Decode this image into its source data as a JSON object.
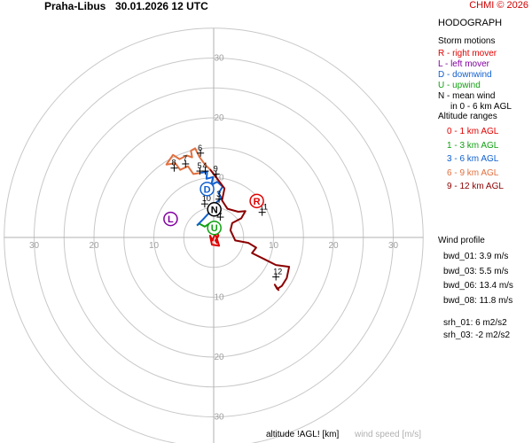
{
  "header": {
    "station": "Praha-Libus",
    "datetime": "30.01.2026 12 UTC",
    "copyright": "CHMI © 2026"
  },
  "panel": {
    "title": "HODOGRAPH",
    "storm_motions_title": "Storm motions",
    "storm_motions": [
      {
        "text": "R - right mover",
        "color": "#e00000"
      },
      {
        "text": "L - left mover",
        "color": "#8000a0"
      },
      {
        "text": "D - downwind",
        "color": "#1060d0"
      },
      {
        "text": "U - upwind",
        "color": "#10a010"
      },
      {
        "text": "N - mean wind",
        "color": "#000000"
      }
    ],
    "mean_wind_note": "in 0 - 6 km AGL",
    "altitude_title": "Altitude ranges",
    "altitude_ranges": [
      {
        "text": "0 - 1 km AGL",
        "color": "#e00000"
      },
      {
        "text": "1 - 3 km AGL",
        "color": "#10a010"
      },
      {
        "text": "3 - 6 km AGL",
        "color": "#1060d0"
      },
      {
        "text": "6 - 9 km AGL",
        "color": "#e07040"
      },
      {
        "text": "9 - 12 km AGL",
        "color": "#8b0000"
      }
    ],
    "wind_profile_title": "Wind profile",
    "bwd": [
      "bwd_01: 3.9 m/s",
      "bwd_03: 5.5 m/s",
      "bwd_06: 13.4 m/s",
      "bwd_08: 11.8 m/s"
    ],
    "srh": [
      "srh_01: 6 m2/s2",
      "srh_03: -2 m2/s2"
    ]
  },
  "footer": {
    "altitude_label": "altitude !AGL! [km]",
    "speed_label": "wind speed [m/s]"
  },
  "chart_data": {
    "type": "line",
    "title": "HODOGRAPH",
    "rings": [
      5,
      10,
      15,
      20,
      25,
      30,
      35
    ],
    "ring_labels": [
      "10",
      "20",
      "30"
    ],
    "axis_range": [
      -35,
      35
    ],
    "grid": true,
    "axis_labels": [
      "altitude !AGL! [km]",
      "wind speed [m/s]"
    ],
    "series": [
      {
        "name": "0 - 1 km AGL",
        "color": "#e00000",
        "points": [
          [
            0.6,
            -1
          ],
          [
            0.3,
            -0.5
          ],
          [
            0.8,
            0.3
          ],
          [
            0.5,
            1
          ],
          [
            0.2,
            2.2
          ],
          [
            -0.3,
            1.8
          ],
          [
            0.3,
            0.8
          ],
          [
            -0.2,
            -0.5
          ],
          [
            -0.6,
            0.3
          ],
          [
            -0.3,
            -1.2
          ],
          [
            0.9,
            -1.4
          ],
          [
            0.3,
            0.6
          ],
          [
            0.6,
            1.6
          ]
        ]
      },
      {
        "name": "1 - 3 km AGL",
        "color": "#10a010",
        "points": [
          [
            0.6,
            1.6
          ],
          [
            -0.6,
            2.4
          ],
          [
            -1.5,
            1.8
          ],
          [
            -2.4,
            2.3
          ],
          [
            -2.8,
            2.0
          ]
        ]
      },
      {
        "name": "3 - 6 km AGL",
        "color": "#1060d0",
        "points": [
          [
            -2.8,
            2.0
          ],
          [
            -1.8,
            3
          ],
          [
            -0.4,
            4.5
          ],
          [
            0.4,
            5.8
          ],
          [
            1.3,
            6.6
          ],
          [
            0.8,
            7.4
          ],
          [
            1.5,
            8.5
          ],
          [
            0.6,
            9.3
          ],
          [
            -0.4,
            8.8
          ],
          [
            -0.1,
            10.1
          ],
          [
            -1.2,
            9.8
          ],
          [
            -1.1,
            11
          ],
          [
            -2.2,
            10.8
          ]
        ]
      },
      {
        "name": "6 - 9 km AGL",
        "color": "#e07040",
        "points": [
          [
            -2.2,
            10.8
          ],
          [
            -3.4,
            10.6
          ],
          [
            -4.3,
            11.9
          ],
          [
            -5.6,
            11.3
          ],
          [
            -6.4,
            12.4
          ],
          [
            -7.9,
            12.2
          ],
          [
            -6.8,
            13.8
          ],
          [
            -5.7,
            13.1
          ],
          [
            -4.5,
            13.7
          ],
          [
            -3.6,
            13.4
          ],
          [
            -3.8,
            14.5
          ],
          [
            -3.1,
            14.9
          ],
          [
            -2.4,
            13.5
          ],
          [
            -1.4,
            12.1
          ],
          [
            -0.6,
            11.4
          ]
        ]
      },
      {
        "name": "9 - 12 km AGL",
        "color": "#8b0000",
        "points": [
          [
            -0.6,
            11.4
          ],
          [
            0.6,
            9.8
          ],
          [
            1.8,
            8.2
          ],
          [
            1.4,
            6.2
          ],
          [
            2.3,
            4.8
          ],
          [
            4.1,
            4.3
          ],
          [
            5.3,
            4.4
          ],
          [
            4.6,
            3.2
          ],
          [
            3.1,
            2.4
          ],
          [
            2.8,
            1.2
          ],
          [
            3.6,
            -0.5
          ],
          [
            5.8,
            -0.9
          ],
          [
            7.1,
            -1.7
          ],
          [
            6.4,
            -2.6
          ],
          [
            8.4,
            -3.6
          ],
          [
            10.4,
            -4.6
          ],
          [
            12.6,
            -4.9
          ],
          [
            12.2,
            -6.8
          ],
          [
            11.4,
            -8.1
          ],
          [
            10.6,
            -8.6
          ],
          [
            10.2,
            -7.9
          ],
          [
            10.9,
            -8.9
          ]
        ]
      }
    ],
    "height_marks": [
      {
        "label": "6",
        "x": -2.2,
        "y": 14.1
      },
      {
        "label": "7",
        "x": -4.7,
        "y": 12.3
      },
      {
        "label": "8",
        "x": -6.6,
        "y": 11.6
      },
      {
        "label": "5",
        "x": -2.3,
        "y": 11.1
      },
      {
        "label": "4",
        "x": -1.4,
        "y": 11.1
      },
      {
        "label": "9",
        "x": 0.4,
        "y": 10.6
      },
      {
        "label": "3",
        "x": 0.9,
        "y": 6.4
      },
      {
        "label": "10",
        "x": -1.5,
        "y": 5.6
      },
      {
        "label": "1",
        "x": 0.7,
        "y": 4.1
      },
      {
        "label": "2",
        "x": 1.1,
        "y": 3.4
      },
      {
        "label": "11",
        "x": 8.1,
        "y": 4.2
      },
      {
        "label": "12",
        "x": 10.4,
        "y": -6.6
      }
    ],
    "storm_motion_markers": [
      {
        "label": "R",
        "x": 7.2,
        "y": 6.1,
        "color": "#e00000"
      },
      {
        "label": "L",
        "x": -7.2,
        "y": 3.1,
        "color": "#8000a0"
      },
      {
        "label": "D",
        "x": -1.1,
        "y": 8.1,
        "color": "#1060d0"
      },
      {
        "label": "U",
        "x": 0.1,
        "y": 1.6,
        "color": "#10a010"
      },
      {
        "label": "N",
        "x": 0.1,
        "y": 4.7,
        "color": "#000000"
      }
    ]
  }
}
